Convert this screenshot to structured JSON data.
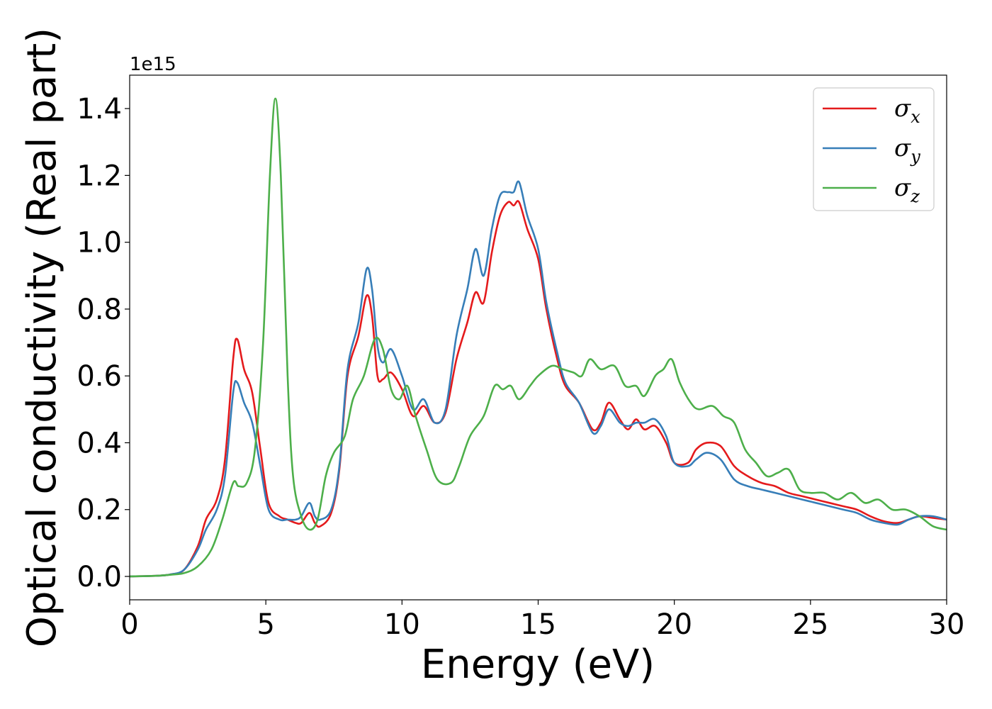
{
  "chart_data": {
    "type": "line",
    "xlabel": "Energy (eV)",
    "ylabel": "Optical conductivity (Real part)",
    "y_offset_text": "1e15",
    "xlim": [
      0,
      30
    ],
    "ylim": [
      -0.07,
      1.5
    ],
    "xticks": [
      0,
      5,
      10,
      15,
      20,
      25,
      30
    ],
    "xtick_labels": [
      "0",
      "5",
      "10",
      "15",
      "20",
      "25",
      "30"
    ],
    "yticks": [
      0.0,
      0.2,
      0.4,
      0.6,
      0.8,
      1.0,
      1.2,
      1.4
    ],
    "ytick_labels": [
      "0.0",
      "0.2",
      "0.4",
      "0.6",
      "0.8",
      "1.0",
      "1.2",
      "1.4"
    ],
    "grid": false,
    "legend_position": "top-right",
    "series": [
      {
        "name": "σx",
        "symbol": "σ",
        "subscript": "x",
        "color": "#e41a1c",
        "points": [
          [
            0,
            0
          ],
          [
            1,
            0.002
          ],
          [
            1.5,
            0.006
          ],
          [
            2,
            0.02
          ],
          [
            2.5,
            0.09
          ],
          [
            2.8,
            0.17
          ],
          [
            3.2,
            0.23
          ],
          [
            3.5,
            0.35
          ],
          [
            3.8,
            0.65
          ],
          [
            3.95,
            0.71
          ],
          [
            4.2,
            0.62
          ],
          [
            4.5,
            0.55
          ],
          [
            4.8,
            0.38
          ],
          [
            5.1,
            0.22
          ],
          [
            5.5,
            0.18
          ],
          [
            5.8,
            0.17
          ],
          [
            6.1,
            0.16
          ],
          [
            6.3,
            0.16
          ],
          [
            6.6,
            0.19
          ],
          [
            6.8,
            0.16
          ],
          [
            7.0,
            0.15
          ],
          [
            7.4,
            0.19
          ],
          [
            7.7,
            0.32
          ],
          [
            8.0,
            0.6
          ],
          [
            8.4,
            0.72
          ],
          [
            8.7,
            0.84
          ],
          [
            8.9,
            0.78
          ],
          [
            9.1,
            0.6
          ],
          [
            9.3,
            0.59
          ],
          [
            9.6,
            0.61
          ],
          [
            10.0,
            0.56
          ],
          [
            10.4,
            0.48
          ],
          [
            10.8,
            0.51
          ],
          [
            11.2,
            0.46
          ],
          [
            11.6,
            0.49
          ],
          [
            12.0,
            0.65
          ],
          [
            12.4,
            0.76
          ],
          [
            12.7,
            0.85
          ],
          [
            13.0,
            0.82
          ],
          [
            13.3,
            0.97
          ],
          [
            13.6,
            1.08
          ],
          [
            13.9,
            1.12
          ],
          [
            14.1,
            1.11
          ],
          [
            14.3,
            1.12
          ],
          [
            14.6,
            1.04
          ],
          [
            15.0,
            0.95
          ],
          [
            15.3,
            0.8
          ],
          [
            15.7,
            0.65
          ],
          [
            16.0,
            0.57
          ],
          [
            16.5,
            0.52
          ],
          [
            17.0,
            0.44
          ],
          [
            17.3,
            0.46
          ],
          [
            17.6,
            0.52
          ],
          [
            18.0,
            0.47
          ],
          [
            18.3,
            0.44
          ],
          [
            18.6,
            0.47
          ],
          [
            18.9,
            0.44
          ],
          [
            19.3,
            0.45
          ],
          [
            19.7,
            0.4
          ],
          [
            20.0,
            0.34
          ],
          [
            20.5,
            0.34
          ],
          [
            20.8,
            0.38
          ],
          [
            21.2,
            0.4
          ],
          [
            21.7,
            0.39
          ],
          [
            22.2,
            0.33
          ],
          [
            22.7,
            0.3
          ],
          [
            23.2,
            0.28
          ],
          [
            23.7,
            0.27
          ],
          [
            24.2,
            0.25
          ],
          [
            24.7,
            0.24
          ],
          [
            25.2,
            0.23
          ],
          [
            25.7,
            0.22
          ],
          [
            26.2,
            0.21
          ],
          [
            26.7,
            0.2
          ],
          [
            27.2,
            0.18
          ],
          [
            27.7,
            0.165
          ],
          [
            28.2,
            0.16
          ],
          [
            28.6,
            0.17
          ],
          [
            29.0,
            0.18
          ],
          [
            29.5,
            0.175
          ],
          [
            30.0,
            0.17
          ]
        ]
      },
      {
        "name": "σy",
        "symbol": "σ",
        "subscript": "y",
        "color": "#377eb8",
        "points": [
          [
            0,
            0
          ],
          [
            1,
            0.002
          ],
          [
            1.5,
            0.006
          ],
          [
            2,
            0.02
          ],
          [
            2.5,
            0.08
          ],
          [
            2.8,
            0.14
          ],
          [
            3.2,
            0.2
          ],
          [
            3.5,
            0.3
          ],
          [
            3.8,
            0.55
          ],
          [
            3.95,
            0.58
          ],
          [
            4.2,
            0.52
          ],
          [
            4.5,
            0.46
          ],
          [
            4.8,
            0.33
          ],
          [
            5.1,
            0.2
          ],
          [
            5.5,
            0.17
          ],
          [
            5.8,
            0.17
          ],
          [
            6.1,
            0.17
          ],
          [
            6.3,
            0.18
          ],
          [
            6.6,
            0.22
          ],
          [
            6.8,
            0.18
          ],
          [
            7.0,
            0.17
          ],
          [
            7.4,
            0.2
          ],
          [
            7.7,
            0.33
          ],
          [
            8.0,
            0.62
          ],
          [
            8.4,
            0.76
          ],
          [
            8.7,
            0.92
          ],
          [
            8.9,
            0.86
          ],
          [
            9.1,
            0.69
          ],
          [
            9.3,
            0.64
          ],
          [
            9.6,
            0.68
          ],
          [
            10.0,
            0.6
          ],
          [
            10.4,
            0.5
          ],
          [
            10.8,
            0.53
          ],
          [
            11.2,
            0.46
          ],
          [
            11.6,
            0.5
          ],
          [
            12.0,
            0.72
          ],
          [
            12.4,
            0.86
          ],
          [
            12.7,
            0.98
          ],
          [
            13.0,
            0.9
          ],
          [
            13.3,
            1.04
          ],
          [
            13.6,
            1.14
          ],
          [
            13.9,
            1.15
          ],
          [
            14.1,
            1.15
          ],
          [
            14.3,
            1.18
          ],
          [
            14.6,
            1.08
          ],
          [
            15.0,
            0.98
          ],
          [
            15.3,
            0.82
          ],
          [
            15.7,
            0.67
          ],
          [
            16.0,
            0.58
          ],
          [
            16.5,
            0.52
          ],
          [
            17.0,
            0.43
          ],
          [
            17.3,
            0.45
          ],
          [
            17.6,
            0.5
          ],
          [
            18.0,
            0.46
          ],
          [
            18.3,
            0.45
          ],
          [
            18.6,
            0.46
          ],
          [
            18.9,
            0.46
          ],
          [
            19.3,
            0.47
          ],
          [
            19.7,
            0.42
          ],
          [
            20.0,
            0.34
          ],
          [
            20.5,
            0.33
          ],
          [
            20.8,
            0.35
          ],
          [
            21.2,
            0.37
          ],
          [
            21.7,
            0.35
          ],
          [
            22.2,
            0.29
          ],
          [
            22.7,
            0.27
          ],
          [
            23.2,
            0.26
          ],
          [
            23.7,
            0.25
          ],
          [
            24.2,
            0.24
          ],
          [
            24.7,
            0.23
          ],
          [
            25.2,
            0.22
          ],
          [
            25.7,
            0.21
          ],
          [
            26.2,
            0.2
          ],
          [
            26.7,
            0.19
          ],
          [
            27.2,
            0.17
          ],
          [
            27.7,
            0.16
          ],
          [
            28.2,
            0.155
          ],
          [
            28.6,
            0.17
          ],
          [
            29.0,
            0.18
          ],
          [
            29.5,
            0.18
          ],
          [
            30.0,
            0.17
          ]
        ]
      },
      {
        "name": "σz",
        "symbol": "σ",
        "subscript": "z",
        "color": "#4daf4a",
        "points": [
          [
            0,
            0
          ],
          [
            1,
            0.002
          ],
          [
            1.5,
            0.005
          ],
          [
            2,
            0.01
          ],
          [
            2.5,
            0.03
          ],
          [
            3.0,
            0.08
          ],
          [
            3.4,
            0.17
          ],
          [
            3.8,
            0.28
          ],
          [
            4.0,
            0.27
          ],
          [
            4.3,
            0.28
          ],
          [
            4.6,
            0.38
          ],
          [
            4.9,
            0.7
          ],
          [
            5.15,
            1.2
          ],
          [
            5.35,
            1.43
          ],
          [
            5.55,
            1.2
          ],
          [
            5.8,
            0.6
          ],
          [
            6.0,
            0.3
          ],
          [
            6.3,
            0.18
          ],
          [
            6.6,
            0.14
          ],
          [
            6.9,
            0.17
          ],
          [
            7.2,
            0.3
          ],
          [
            7.5,
            0.37
          ],
          [
            7.9,
            0.42
          ],
          [
            8.2,
            0.53
          ],
          [
            8.6,
            0.6
          ],
          [
            9.0,
            0.71
          ],
          [
            9.3,
            0.68
          ],
          [
            9.6,
            0.56
          ],
          [
            9.9,
            0.53
          ],
          [
            10.2,
            0.57
          ],
          [
            10.5,
            0.48
          ],
          [
            10.9,
            0.38
          ],
          [
            11.3,
            0.29
          ],
          [
            11.8,
            0.28
          ],
          [
            12.1,
            0.33
          ],
          [
            12.5,
            0.42
          ],
          [
            13.0,
            0.48
          ],
          [
            13.4,
            0.57
          ],
          [
            13.7,
            0.56
          ],
          [
            14.0,
            0.57
          ],
          [
            14.3,
            0.53
          ],
          [
            14.7,
            0.57
          ],
          [
            15.0,
            0.6
          ],
          [
            15.5,
            0.63
          ],
          [
            15.9,
            0.62
          ],
          [
            16.3,
            0.61
          ],
          [
            16.6,
            0.6
          ],
          [
            16.9,
            0.65
          ],
          [
            17.3,
            0.62
          ],
          [
            17.8,
            0.63
          ],
          [
            18.2,
            0.57
          ],
          [
            18.6,
            0.57
          ],
          [
            18.9,
            0.54
          ],
          [
            19.3,
            0.6
          ],
          [
            19.6,
            0.62
          ],
          [
            19.9,
            0.65
          ],
          [
            20.2,
            0.58
          ],
          [
            20.6,
            0.52
          ],
          [
            20.9,
            0.5
          ],
          [
            21.4,
            0.51
          ],
          [
            21.8,
            0.48
          ],
          [
            22.2,
            0.46
          ],
          [
            22.6,
            0.38
          ],
          [
            23.0,
            0.34
          ],
          [
            23.4,
            0.3
          ],
          [
            23.8,
            0.31
          ],
          [
            24.2,
            0.32
          ],
          [
            24.6,
            0.26
          ],
          [
            25.0,
            0.25
          ],
          [
            25.5,
            0.25
          ],
          [
            26.0,
            0.23
          ],
          [
            26.5,
            0.25
          ],
          [
            27.0,
            0.22
          ],
          [
            27.5,
            0.23
          ],
          [
            28.0,
            0.2
          ],
          [
            28.5,
            0.2
          ],
          [
            29.0,
            0.18
          ],
          [
            29.5,
            0.15
          ],
          [
            30.0,
            0.14
          ]
        ]
      }
    ]
  }
}
